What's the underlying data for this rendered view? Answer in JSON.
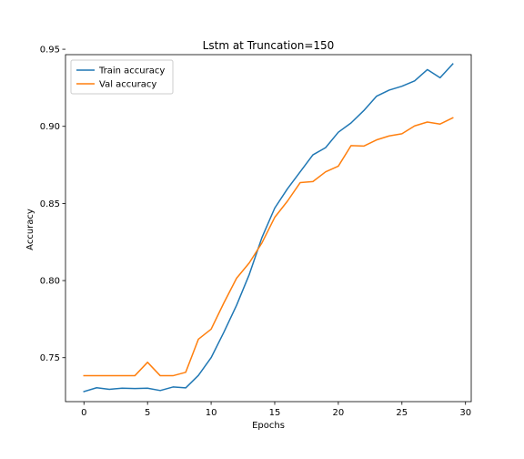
{
  "chart_data": {
    "type": "line",
    "title": "Lstm at Truncation=150",
    "xlabel": "Epochs",
    "ylabel": "Accuracy",
    "xlim": [
      -1.45,
      30.45
    ],
    "ylim": [
      0.7215,
      0.9465
    ],
    "grid": false,
    "legend_position": "top-left",
    "x_ticks": [
      0,
      5,
      10,
      15,
      20,
      25,
      30
    ],
    "x_tick_labels": [
      "0",
      "5",
      "10",
      "15",
      "20",
      "25",
      "30"
    ],
    "y_ticks": [
      0.75,
      0.8,
      0.85,
      0.9,
      0.95
    ],
    "y_tick_labels": [
      "0.75",
      "0.80",
      "0.85",
      "0.90",
      "0.95"
    ],
    "x": [
      0,
      1,
      2,
      3,
      4,
      5,
      6,
      7,
      8,
      9,
      10,
      11,
      12,
      13,
      14,
      15,
      16,
      17,
      18,
      19,
      20,
      21,
      22,
      23,
      24,
      25,
      26,
      27,
      28,
      29
    ],
    "series": [
      {
        "name": "Train accuracy",
        "color": "#1f77b4",
        "values": [
          0.728,
          0.7305,
          0.7295,
          0.7302,
          0.73,
          0.7302,
          0.7287,
          0.731,
          0.7304,
          0.7385,
          0.75,
          0.7665,
          0.784,
          0.804,
          0.828,
          0.847,
          0.8595,
          0.8705,
          0.8815,
          0.8862,
          0.8962,
          0.9022,
          0.9102,
          0.9195,
          0.9235,
          0.926,
          0.9295,
          0.9368,
          0.9315,
          0.9405
        ]
      },
      {
        "name": "Val accuracy",
        "color": "#ff7f0e",
        "values": [
          0.7383,
          0.7383,
          0.7383,
          0.7383,
          0.7383,
          0.747,
          0.7383,
          0.7383,
          0.7405,
          0.762,
          0.7685,
          0.7855,
          0.8015,
          0.8115,
          0.8245,
          0.841,
          0.8515,
          0.8635,
          0.8642,
          0.8705,
          0.8742,
          0.8875,
          0.8872,
          0.8912,
          0.8938,
          0.8952,
          0.9003,
          0.9028,
          0.9015,
          0.9055
        ]
      }
    ]
  }
}
